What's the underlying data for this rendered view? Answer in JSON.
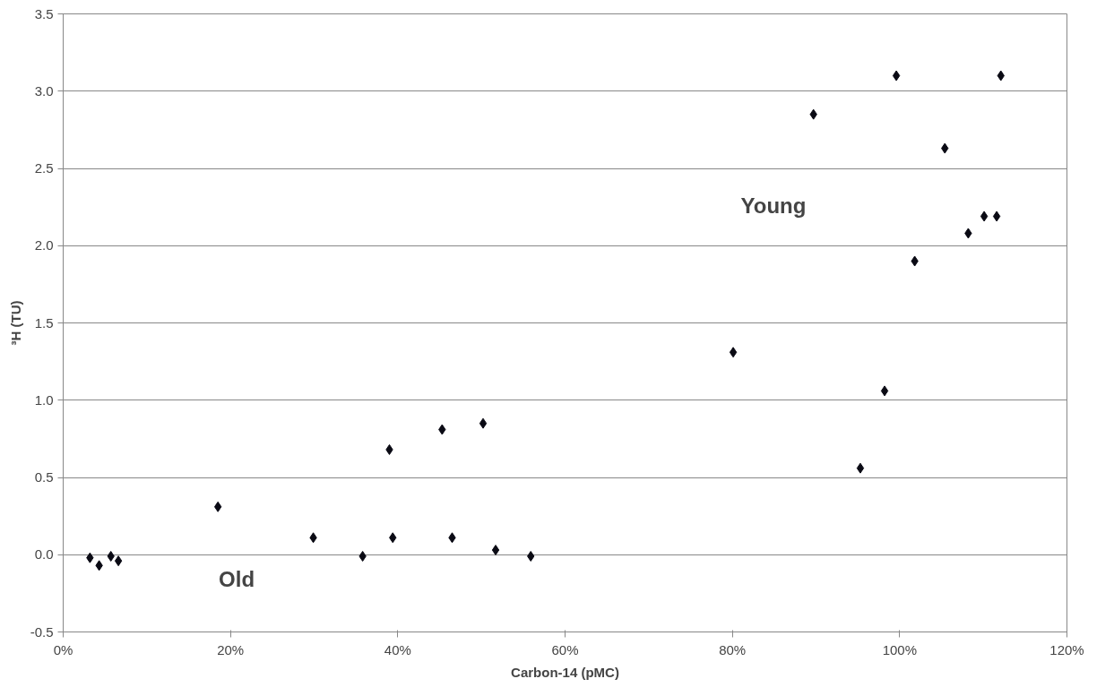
{
  "chart_data": {
    "type": "scatter",
    "xlabel": "Carbon-14 (pMC)",
    "ylabel": "³H (TU)",
    "series": [
      {
        "color": "#0a0a14",
        "x": [
          3.2,
          4.3,
          5.7,
          6.6,
          18.5,
          29.9,
          35.8,
          39.4,
          39.0,
          45.3,
          46.5,
          50.2,
          51.7,
          55.9,
          80.1,
          95.3,
          98.2,
          89.7,
          99.6,
          105.4,
          101.8,
          108.2,
          110.1,
          111.6,
          112.1
        ],
        "values": [
          -0.02,
          -0.07,
          -0.01,
          -0.04,
          0.31,
          0.11,
          -0.01,
          0.11,
          0.68,
          0.81,
          0.11,
          0.85,
          0.03,
          -0.01,
          1.31,
          0.56,
          1.06,
          2.85,
          3.1,
          2.63,
          1.9,
          2.08,
          2.19,
          2.19,
          3.1
        ]
      }
    ],
    "marker": "diamond",
    "grid": "y",
    "xlim": [
      0,
      120
    ],
    "xticks": [
      {
        "value": 0,
        "label": "0%"
      },
      {
        "value": 20,
        "label": "20%"
      },
      {
        "value": 40,
        "label": "40%"
      },
      {
        "value": 60,
        "label": "60%"
      },
      {
        "value": 80,
        "label": "80%"
      },
      {
        "value": 100,
        "label": "100%"
      },
      {
        "value": 120,
        "label": "120%"
      }
    ],
    "ylim": [
      -0.5,
      3.5
    ],
    "yticks": [
      {
        "value": -0.5,
        "label": "-0.5"
      },
      {
        "value": 0,
        "label": "0.0"
      },
      {
        "value": 0.5,
        "label": "0.5"
      },
      {
        "value": 1,
        "label": "1.0"
      },
      {
        "value": 1.5,
        "label": "1.5"
      },
      {
        "value": 2,
        "label": "2.0"
      },
      {
        "value": 2.5,
        "label": "2.5"
      },
      {
        "value": 3,
        "label": "3.0"
      },
      {
        "value": 3.5,
        "label": "3.5"
      }
    ],
    "annotations": [
      "Old",
      "Young"
    ]
  }
}
